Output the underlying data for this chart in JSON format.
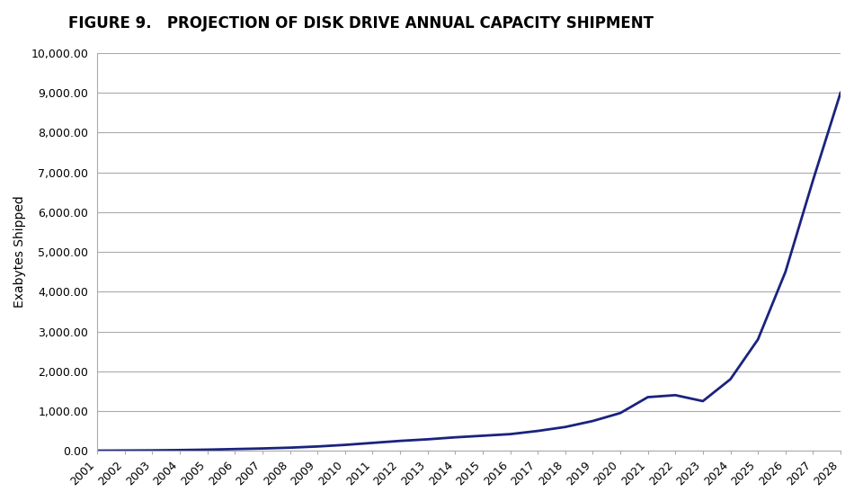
{
  "title": "FIGURE 9.   PROJECTION OF DISK DRIVE ANNUAL CAPACITY SHIPMENT",
  "ylabel": "Exabytes Shipped",
  "years": [
    2001,
    2002,
    2003,
    2004,
    2005,
    2006,
    2007,
    2008,
    2009,
    2010,
    2011,
    2012,
    2013,
    2014,
    2015,
    2016,
    2017,
    2018,
    2019,
    2020,
    2021,
    2022,
    2023,
    2024,
    2025,
    2026,
    2027,
    2028
  ],
  "values": [
    5,
    8,
    12,
    20,
    30,
    45,
    60,
    80,
    110,
    150,
    200,
    250,
    290,
    340,
    380,
    420,
    500,
    600,
    750,
    950,
    1350,
    1400,
    1250,
    1800,
    2800,
    4500,
    6800,
    9000
  ],
  "line_color": "#1a237e",
  "line_width": 2.0,
  "bg_color": "#ffffff",
  "plot_bg_color": "#ffffff",
  "grid_color": "#aaaaaa",
  "ylim": [
    0,
    10000
  ],
  "yticks": [
    0,
    1000,
    2000,
    3000,
    4000,
    5000,
    6000,
    7000,
    8000,
    9000,
    10000
  ],
  "title_fontsize": 12,
  "label_fontsize": 10,
  "tick_fontsize": 9
}
